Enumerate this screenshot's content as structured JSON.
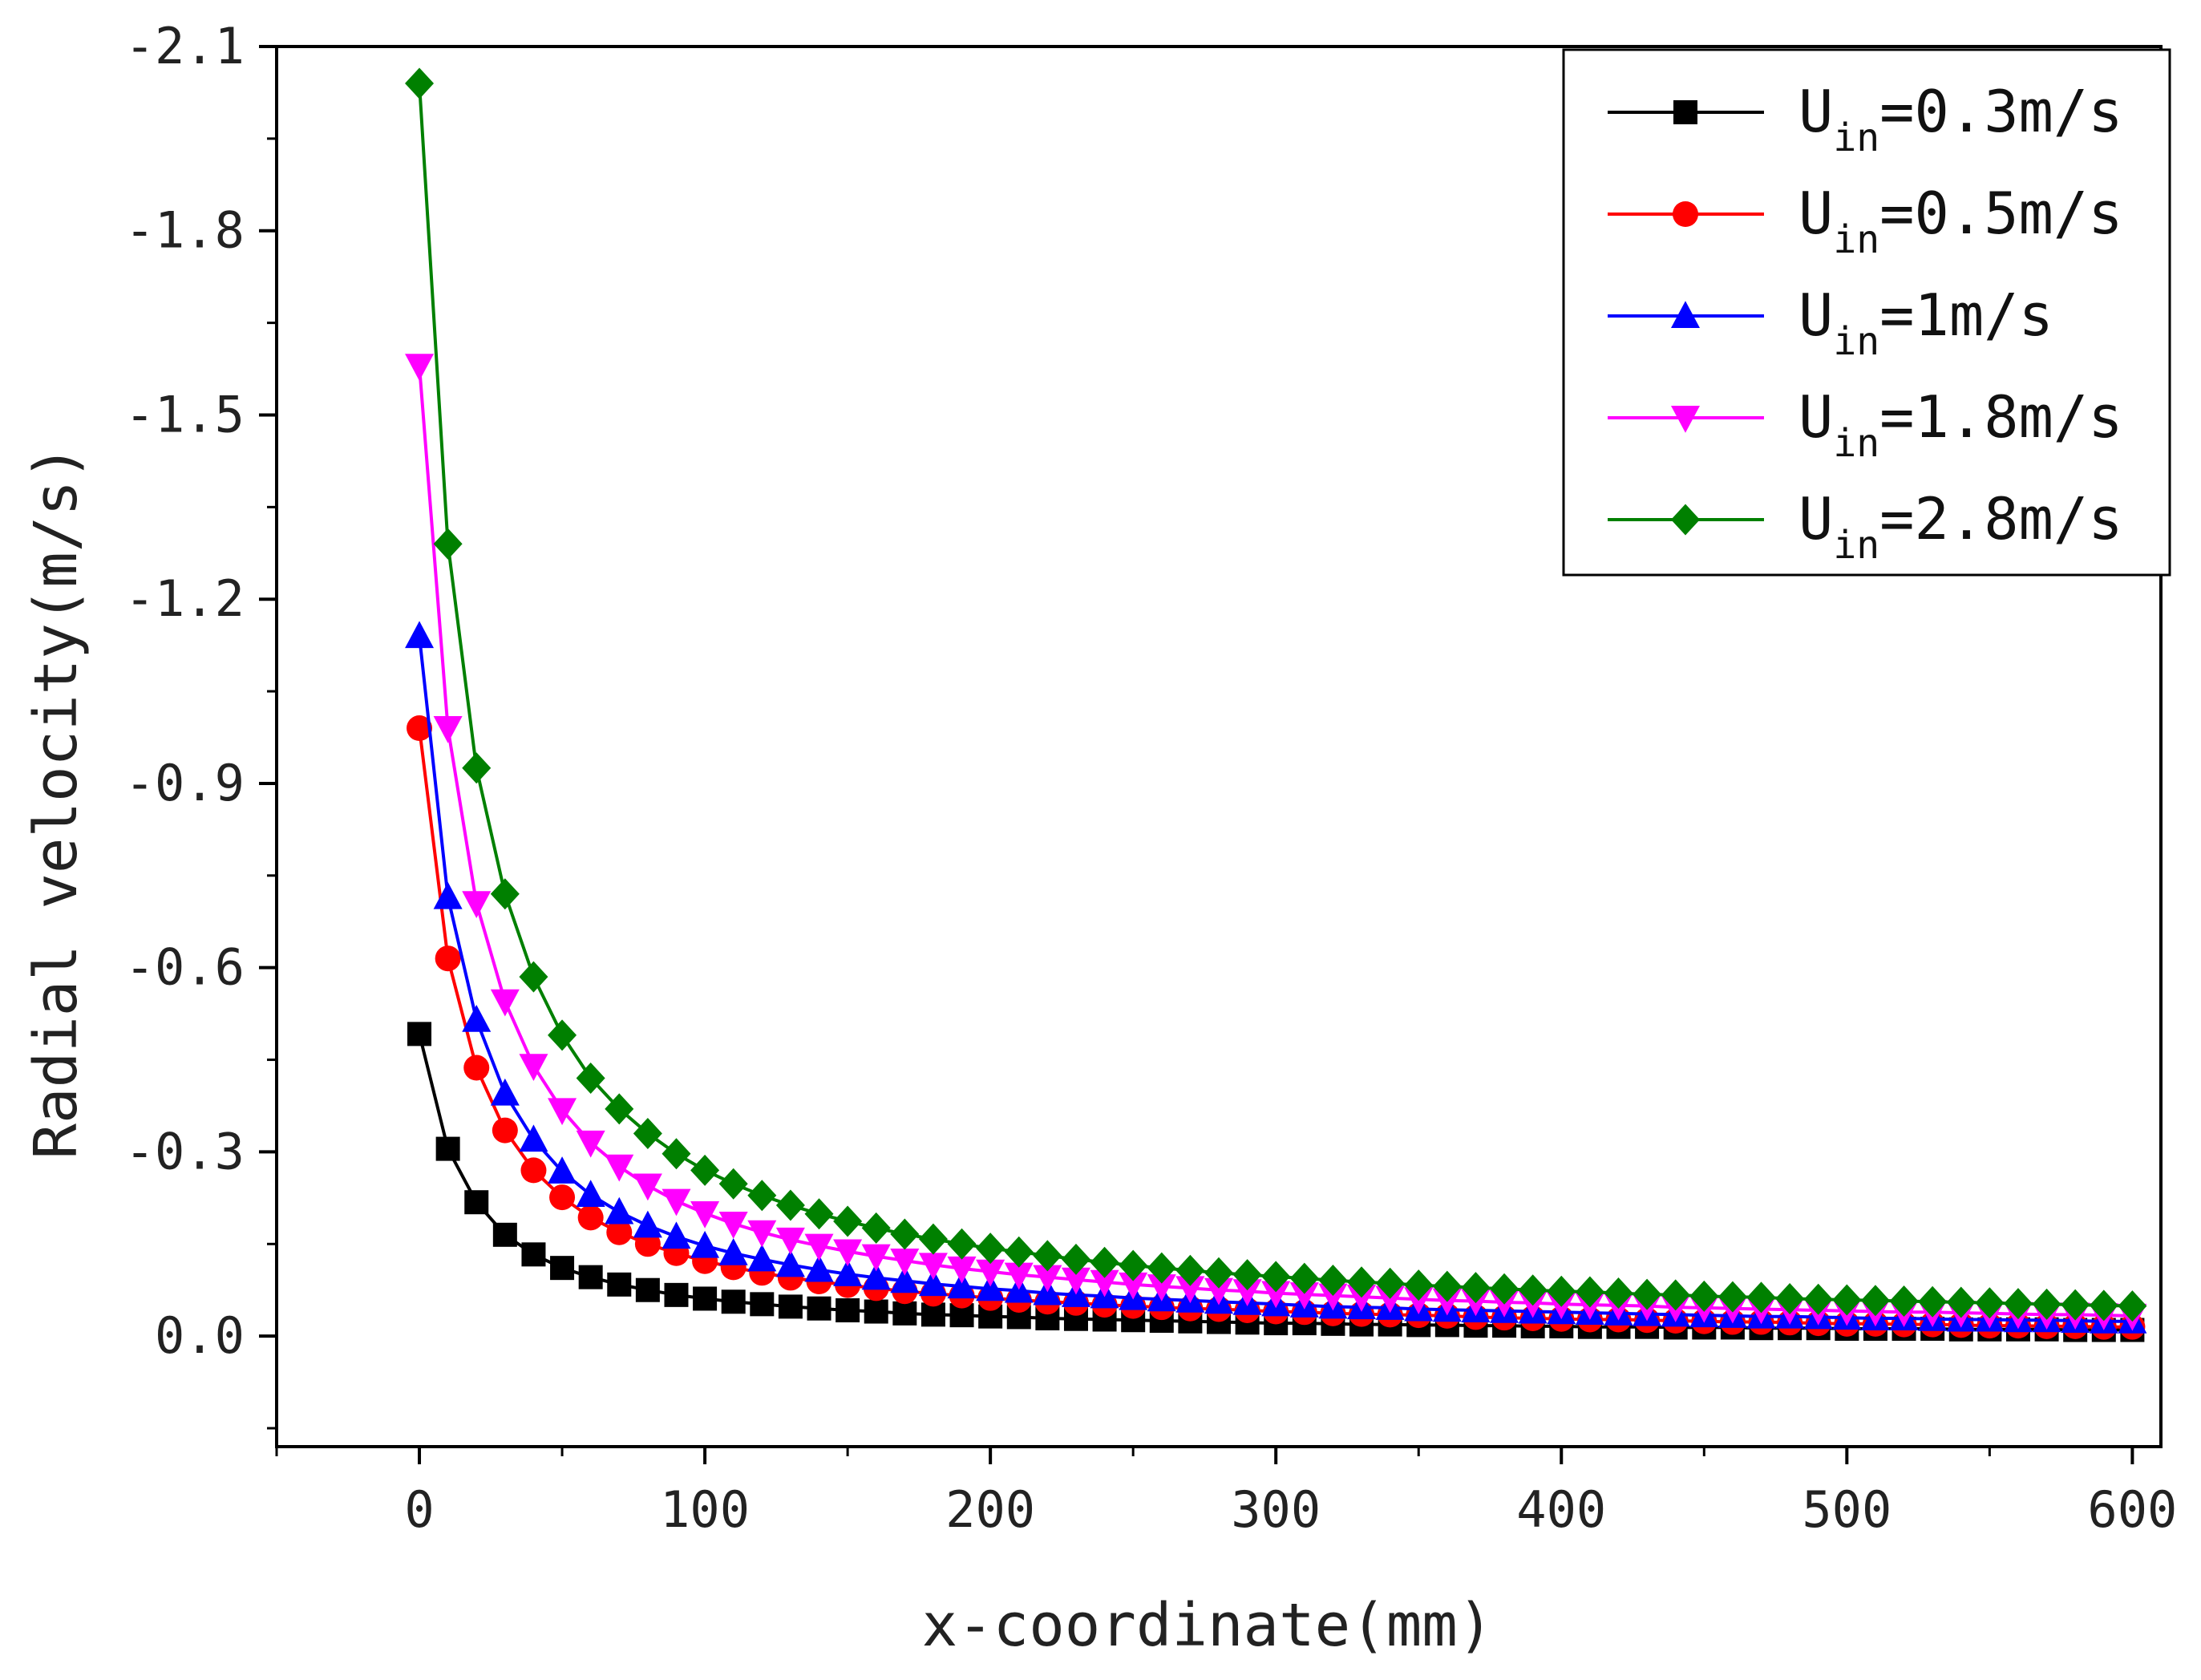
{
  "chart_data": {
    "type": "line",
    "title": "",
    "xlabel": "x-coordinate(mm)",
    "ylabel": "Radial velocity(m/s)",
    "xlim": [
      -50,
      610
    ],
    "ylim": [
      0.18,
      -2.1
    ],
    "y_axis_inverted": true,
    "grid": false,
    "legend_position": "top-right",
    "x_ticks": [
      "0",
      "100",
      "200",
      "300",
      "400",
      "500",
      "600"
    ],
    "x_tick_values": [
      0,
      100,
      200,
      300,
      400,
      500,
      600
    ],
    "y_ticks": [
      "-2.1",
      "-1.8",
      "-1.5",
      "-1.2",
      "-0.9",
      "-0.6",
      "-0.3",
      "0.0"
    ],
    "y_tick_values": [
      -2.1,
      -1.8,
      -1.5,
      -1.2,
      -0.9,
      -0.6,
      -0.3,
      0.0
    ],
    "x": [
      0,
      10,
      20,
      30,
      40,
      50,
      60,
      70,
      80,
      90,
      100,
      110,
      120,
      130,
      140,
      150,
      160,
      170,
      180,
      190,
      200,
      210,
      220,
      230,
      240,
      250,
      260,
      270,
      280,
      290,
      300,
      310,
      320,
      330,
      340,
      350,
      360,
      370,
      380,
      390,
      400,
      410,
      420,
      430,
      440,
      450,
      460,
      470,
      480,
      490,
      500,
      510,
      520,
      530,
      540,
      550,
      560,
      570,
      580,
      590,
      600
    ],
    "series": [
      {
        "name_main": "U",
        "name_sub": "in",
        "name_rest": "=0.3m/s",
        "color": "#000000",
        "marker": "square",
        "values": [
          -0.492,
          -0.305,
          -0.218,
          -0.165,
          -0.133,
          -0.111,
          -0.096,
          -0.084,
          -0.075,
          -0.067,
          -0.061,
          -0.056,
          -0.052,
          -0.048,
          -0.045,
          -0.042,
          -0.04,
          -0.037,
          -0.035,
          -0.034,
          -0.032,
          -0.031,
          -0.029,
          -0.028,
          -0.027,
          -0.026,
          -0.025,
          -0.024,
          -0.023,
          -0.022,
          -0.021,
          -0.021,
          -0.02,
          -0.019,
          -0.019,
          -0.018,
          -0.018,
          -0.017,
          -0.017,
          -0.016,
          -0.016,
          -0.015,
          -0.015,
          -0.015,
          -0.014,
          -0.014,
          -0.014,
          -0.013,
          -0.013,
          -0.013,
          -0.012,
          -0.012,
          -0.012,
          -0.012,
          -0.011,
          -0.011,
          -0.011,
          -0.011,
          -0.01,
          -0.01,
          -0.01
        ]
      },
      {
        "name_main": "U",
        "name_sub": "in",
        "name_rest": "=0.5m/s",
        "color": "#ff0000",
        "marker": "circle",
        "values": [
          -0.99,
          -0.615,
          -0.437,
          -0.335,
          -0.27,
          -0.226,
          -0.193,
          -0.169,
          -0.15,
          -0.135,
          -0.122,
          -0.112,
          -0.103,
          -0.095,
          -0.089,
          -0.083,
          -0.078,
          -0.073,
          -0.069,
          -0.066,
          -0.062,
          -0.059,
          -0.056,
          -0.054,
          -0.051,
          -0.049,
          -0.047,
          -0.045,
          -0.044,
          -0.042,
          -0.04,
          -0.039,
          -0.037,
          -0.036,
          -0.035,
          -0.034,
          -0.033,
          -0.031,
          -0.03,
          -0.029,
          -0.028,
          -0.027,
          -0.027,
          -0.026,
          -0.025,
          -0.024,
          -0.023,
          -0.023,
          -0.022,
          -0.021,
          -0.02,
          -0.02,
          -0.019,
          -0.019,
          -0.018,
          -0.017,
          -0.017,
          -0.016,
          -0.016,
          -0.015,
          -0.015
        ]
      },
      {
        "name_main": "U",
        "name_sub": "in",
        "name_rest": "=1m/s",
        "color": "#0000ff",
        "marker": "triangle-up",
        "values": [
          -1.14,
          -0.715,
          -0.515,
          -0.395,
          -0.32,
          -0.268,
          -0.23,
          -0.202,
          -0.18,
          -0.162,
          -0.147,
          -0.135,
          -0.125,
          -0.116,
          -0.108,
          -0.101,
          -0.095,
          -0.09,
          -0.085,
          -0.081,
          -0.077,
          -0.074,
          -0.07,
          -0.067,
          -0.065,
          -0.062,
          -0.06,
          -0.058,
          -0.056,
          -0.054,
          -0.052,
          -0.05,
          -0.048,
          -0.047,
          -0.046,
          -0.044,
          -0.043,
          -0.042,
          -0.041,
          -0.04,
          -0.039,
          -0.038,
          -0.037,
          -0.036,
          -0.035,
          -0.034,
          -0.033,
          -0.032,
          -0.032,
          -0.031,
          -0.03,
          -0.029,
          -0.029,
          -0.028,
          -0.027,
          -0.027,
          -0.026,
          -0.026,
          -0.025,
          -0.024,
          -0.024
        ]
      },
      {
        "name_main": "U",
        "name_sub": "in",
        "name_rest": "=1.8m/s",
        "color": "#ff00ff",
        "marker": "triangle-down",
        "values": [
          -1.58,
          -0.99,
          -0.705,
          -0.545,
          -0.44,
          -0.368,
          -0.315,
          -0.276,
          -0.245,
          -0.22,
          -0.2,
          -0.183,
          -0.169,
          -0.157,
          -0.147,
          -0.138,
          -0.13,
          -0.123,
          -0.116,
          -0.11,
          -0.105,
          -0.1,
          -0.096,
          -0.092,
          -0.088,
          -0.084,
          -0.081,
          -0.078,
          -0.075,
          -0.073,
          -0.07,
          -0.068,
          -0.066,
          -0.064,
          -0.062,
          -0.06,
          -0.058,
          -0.057,
          -0.055,
          -0.054,
          -0.052,
          -0.051,
          -0.05,
          -0.049,
          -0.047,
          -0.046,
          -0.045,
          -0.044,
          -0.043,
          -0.042,
          -0.041,
          -0.04,
          -0.039,
          -0.039,
          -0.038,
          -0.037,
          -0.036,
          -0.035,
          -0.035,
          -0.034,
          -0.033
        ]
      },
      {
        "name_main": "U",
        "name_sub": "in",
        "name_rest": "=2.8m/s",
        "color": "#008000",
        "marker": "diamond",
        "values": [
          -2.04,
          -1.29,
          -0.925,
          -0.72,
          -0.585,
          -0.49,
          -0.42,
          -0.37,
          -0.33,
          -0.297,
          -0.27,
          -0.248,
          -0.229,
          -0.213,
          -0.199,
          -0.187,
          -0.176,
          -0.166,
          -0.158,
          -0.15,
          -0.143,
          -0.137,
          -0.131,
          -0.125,
          -0.12,
          -0.115,
          -0.111,
          -0.107,
          -0.103,
          -0.1,
          -0.097,
          -0.094,
          -0.091,
          -0.088,
          -0.086,
          -0.083,
          -0.081,
          -0.079,
          -0.077,
          -0.075,
          -0.073,
          -0.072,
          -0.07,
          -0.068,
          -0.067,
          -0.065,
          -0.064,
          -0.063,
          -0.061,
          -0.06,
          -0.059,
          -0.058,
          -0.057,
          -0.056,
          -0.055,
          -0.054,
          -0.053,
          -0.052,
          -0.051,
          -0.05,
          -0.049
        ]
      }
    ]
  }
}
